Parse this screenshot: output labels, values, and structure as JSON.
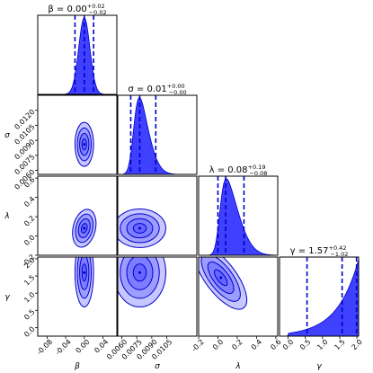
{
  "chart_data": {
    "type": "corner",
    "parameters": [
      {
        "key": "beta",
        "symbol": "β",
        "label": "β",
        "range": [
          -0.1,
          0.07
        ],
        "ticks": [
          "-0.08",
          "-0.04",
          "0.00",
          "0.04"
        ],
        "tick_values": [
          -0.08,
          -0.04,
          0.0,
          0.04
        ],
        "title": {
          "value": "0.00",
          "plus": "+0.02",
          "minus": "−0.02"
        },
        "marginal": {
          "kind": "normal",
          "mu": 0.0,
          "sd": 0.012
        },
        "lines": [
          -0.02,
          0.0,
          0.02
        ]
      },
      {
        "key": "sigma",
        "symbol": "σ",
        "label": "σ",
        "range": [
          0.0056,
          0.0135
        ],
        "ticks": [
          "0.0060",
          "0.0075",
          "0.0090",
          "0.0105"
        ],
        "tick_values": [
          0.006,
          0.0075,
          0.009,
          0.0105
        ],
        "y_ticks": [
          "0.0060",
          "0.0075",
          "0.0090",
          "0.0105",
          "0.0120"
        ],
        "y_tick_values": [
          0.006,
          0.0075,
          0.009,
          0.0105,
          0.012
        ],
        "title": {
          "value": "0.01",
          "plus": "+0.00",
          "minus": "−0.00"
        },
        "marginal": {
          "kind": "skewnormal",
          "mu": 0.0072,
          "sd": 0.0012,
          "skew": 3.0
        },
        "lines": [
          0.0069,
          0.0078,
          0.0094
        ]
      },
      {
        "key": "lambda",
        "symbol": "λ",
        "label": "λ",
        "range": [
          -0.2,
          0.62
        ],
        "ticks": [
          "-0.2",
          "0.0",
          "0.2",
          "0.4",
          "0.6"
        ],
        "tick_values": [
          -0.2,
          0.0,
          0.2,
          0.4,
          0.6
        ],
        "title": {
          "value": "0.08",
          "plus": "+0.19",
          "minus": "−0.08"
        },
        "marginal": {
          "kind": "skewnormal",
          "mu": 0.02,
          "sd": 0.16,
          "skew": 4.0
        },
        "lines": [
          0.0,
          0.08,
          0.27
        ]
      },
      {
        "key": "gamma",
        "symbol": "γ",
        "label": "γ",
        "range": [
          -0.25,
          2.05
        ],
        "ticks": [
          "0.0",
          "0.5",
          "1.0",
          "1.5",
          "2.0"
        ],
        "tick_values": [
          0.0,
          0.5,
          1.0,
          1.5,
          2.0
        ],
        "title": {
          "value": "1.57",
          "plus": "+0.42",
          "minus": "−1.02"
        },
        "marginal": {
          "kind": "exp",
          "rate": 1.6
        },
        "lines": [
          0.55,
          1.57,
          1.99
        ]
      }
    ],
    "contours_2d": [
      {
        "x": "beta",
        "y": "sigma",
        "center": [
          0.0,
          0.0086
        ],
        "spread": [
          0.01,
          0.0011
        ],
        "corr": 0.0
      },
      {
        "x": "beta",
        "y": "lambda",
        "center": [
          0.0,
          0.08
        ],
        "spread": [
          0.012,
          0.1
        ],
        "corr": -0.2
      },
      {
        "x": "sigma",
        "y": "lambda",
        "center": [
          0.0078,
          0.08
        ],
        "spread": [
          0.0013,
          0.1
        ],
        "corr": 0.0
      },
      {
        "x": "beta",
        "y": "gamma",
        "center": [
          0.0,
          1.6
        ],
        "spread": [
          0.01,
          0.5
        ],
        "corr": 0.0
      },
      {
        "x": "sigma",
        "y": "gamma",
        "center": [
          0.0078,
          1.6
        ],
        "spread": [
          0.0013,
          0.5
        ],
        "corr": 0.0
      },
      {
        "x": "lambda",
        "y": "gamma",
        "center": [
          0.03,
          1.45
        ],
        "spread": [
          0.08,
          0.55
        ],
        "corr": 0.6
      }
    ],
    "levels_sigma": [
      0.5,
      1.0,
      1.5,
      2.0
    ],
    "colors": {
      "fill": "#1f1fff",
      "fill_alpha": 0.25,
      "line": "#0000cc",
      "quantile": "#0000d0"
    },
    "grid": false,
    "legend": "none"
  }
}
